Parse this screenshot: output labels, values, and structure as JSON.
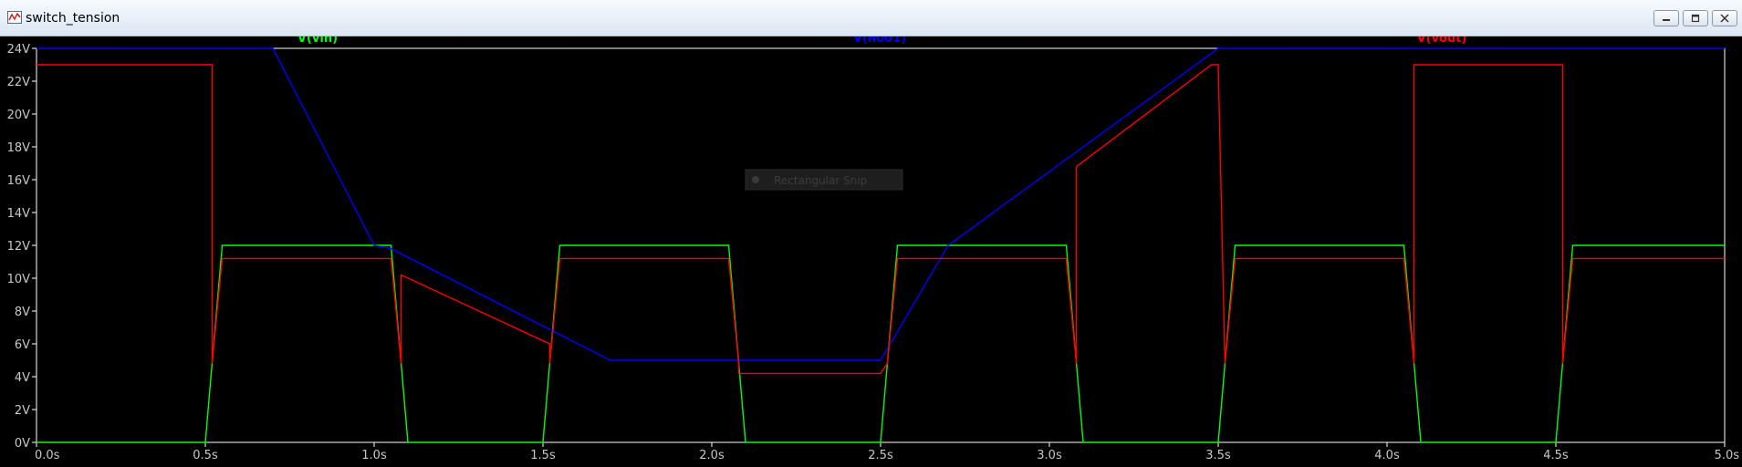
{
  "window": {
    "title": "switch_tension",
    "icon": "waveform-app-icon",
    "controls": [
      "minimize-icon",
      "restore-icon",
      "close-icon"
    ]
  },
  "overlay": {
    "label": "Rectangular Snip",
    "icon": "snip-icon"
  },
  "colors": {
    "background": "#000000",
    "frame": "#ffffff",
    "axis_text": "#c8c8c8",
    "vin": "#00ff00",
    "n001": "#0000ff",
    "vout": "#ff0000"
  },
  "chart_data": {
    "type": "line",
    "xlabel": "",
    "ylabel": "",
    "xlim": [
      0,
      5.0
    ],
    "ylim": [
      0,
      24
    ],
    "x_unit": "s",
    "y_unit": "V",
    "x_ticks": [
      0,
      0.5,
      1.0,
      1.5,
      2.0,
      2.5,
      3.0,
      3.5,
      4.0,
      4.5,
      5.0
    ],
    "x_tick_labels": [
      "0.0s",
      "0.5s",
      "1.0s",
      "1.5s",
      "2.0s",
      "2.5s",
      "3.0s",
      "3.5s",
      "4.0s",
      "4.5s",
      "5.0s"
    ],
    "y_ticks": [
      0,
      2,
      4,
      6,
      8,
      10,
      12,
      14,
      16,
      18,
      20,
      22,
      24
    ],
    "y_tick_labels": [
      "0V",
      "2V",
      "4V",
      "6V",
      "8V",
      "10V",
      "12V",
      "14V",
      "16V",
      "18V",
      "20V",
      "22V",
      "24V"
    ],
    "grid": false,
    "legend": "top",
    "series": [
      {
        "name": "V(vin)",
        "color": "#00ff00",
        "x": [
          0,
          0.5,
          0.55,
          1.05,
          1.1,
          1.5,
          1.55,
          2.05,
          2.1,
          2.5,
          2.55,
          3.05,
          3.1,
          3.5,
          3.55,
          4.05,
          4.1,
          4.5,
          4.55,
          5.0
        ],
        "y": [
          0,
          0,
          12,
          12,
          0,
          0,
          12,
          12,
          0,
          0,
          12,
          12,
          0,
          0,
          12,
          12,
          0,
          0,
          12,
          12
        ]
      },
      {
        "name": "V(n001)",
        "color": "#0000ff",
        "x": [
          0,
          0.7,
          1.0,
          1.05,
          1.7,
          2.5,
          2.7,
          3.5,
          5.0
        ],
        "y": [
          24,
          24,
          12,
          11.8,
          5,
          5,
          12,
          24,
          24
        ]
      },
      {
        "name": "V(vout)",
        "color": "#ff0000",
        "x": [
          0,
          0.52,
          0.52,
          0.55,
          1.05,
          1.08,
          1.08,
          1.52,
          1.52,
          1.55,
          2.05,
          2.08,
          2.08,
          2.5,
          2.52,
          2.55,
          3.05,
          3.08,
          3.08,
          3.48,
          3.5,
          3.52,
          3.55,
          4.05,
          4.08,
          4.08,
          4.52,
          4.52,
          4.55,
          5.0
        ],
        "y": [
          23,
          23,
          4.8,
          11.2,
          11.2,
          4.8,
          10.2,
          6.0,
          4.8,
          11.2,
          11.2,
          4.8,
          4.2,
          4.2,
          4.8,
          11.2,
          11.2,
          4.8,
          16.8,
          23,
          23,
          4.8,
          11.2,
          11.2,
          4.8,
          23,
          23,
          4.8,
          11.2,
          11.2
        ]
      }
    ]
  }
}
